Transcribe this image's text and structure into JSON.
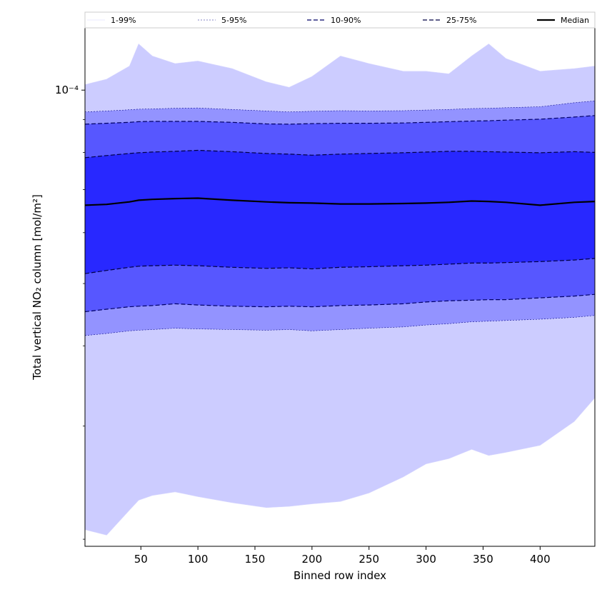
{
  "chart_data": {
    "type": "area",
    "xlabel": "Binned row index",
    "ylabel": "Total vertical NO₂ column [mol/m²]",
    "x_ticks": [
      50,
      100,
      150,
      200,
      250,
      300,
      350,
      400
    ],
    "y_scale": "log",
    "y_tick_label": "10⁻⁴",
    "xlim": [
      1,
      448
    ],
    "ylim": [
      1.95e-05,
      0.000125
    ],
    "grid": false,
    "legend_placement": "top",
    "x": [
      1,
      20,
      40,
      48,
      60,
      80,
      100,
      130,
      160,
      180,
      200,
      225,
      250,
      280,
      300,
      320,
      340,
      355,
      370,
      400,
      430,
      448
    ],
    "series": [
      {
        "name": "1-99%",
        "band_color": "#ccccff",
        "line_color": "#d6d6ff",
        "lower": [
          2.07e-05,
          2.03e-05,
          2.22e-05,
          2.3e-05,
          2.34e-05,
          2.37e-05,
          2.33e-05,
          2.28e-05,
          2.24e-05,
          2.25e-05,
          2.27e-05,
          2.29e-05,
          2.36e-05,
          2.5e-05,
          2.62e-05,
          2.67e-05,
          2.76e-05,
          2.7e-05,
          2.73e-05,
          2.8e-05,
          3.05e-05,
          3.32e-05
        ],
        "upper": [
          0.000102,
          0.000104,
          0.000109,
          0.000118,
          0.000113,
          0.00011,
          0.000111,
          0.000108,
          0.000103,
          0.000101,
          0.000105,
          0.000113,
          0.00011,
          0.000107,
          0.000107,
          0.000106,
          0.000113,
          0.000118,
          0.000112,
          0.000107,
          0.000108,
          0.000109
        ]
      },
      {
        "name": "5-95%",
        "band_color": "#9393ff",
        "line_color": "#0a0a8c",
        "lower": [
          4.15e-05,
          4.18e-05,
          4.22e-05,
          4.23e-05,
          4.24e-05,
          4.26e-05,
          4.25e-05,
          4.24e-05,
          4.23e-05,
          4.24e-05,
          4.22e-05,
          4.24e-05,
          4.26e-05,
          4.28e-05,
          4.31e-05,
          4.33e-05,
          4.36e-05,
          4.37e-05,
          4.38e-05,
          4.4e-05,
          4.43e-05,
          4.46e-05
        ],
        "upper": [
          9.25e-05,
          9.28e-05,
          9.32e-05,
          9.34e-05,
          9.35e-05,
          9.37e-05,
          9.38e-05,
          9.33e-05,
          9.28e-05,
          9.25e-05,
          9.27e-05,
          9.29e-05,
          9.28e-05,
          9.29e-05,
          9.31e-05,
          9.33e-05,
          9.36e-05,
          9.37e-05,
          9.39e-05,
          9.42e-05,
          9.56e-05,
          9.62e-05
        ]
      },
      {
        "name": "10-90%",
        "band_color": "#5757ff",
        "line_color": "#000066",
        "lower": [
          4.52e-05,
          4.56e-05,
          4.6e-05,
          4.61e-05,
          4.62e-05,
          4.65e-05,
          4.63e-05,
          4.61e-05,
          4.6e-05,
          4.61e-05,
          4.6e-05,
          4.62e-05,
          4.63e-05,
          4.65e-05,
          4.68e-05,
          4.7e-05,
          4.71e-05,
          4.72e-05,
          4.72e-05,
          4.75e-05,
          4.78e-05,
          4.81e-05
        ],
        "upper": [
          8.85e-05,
          8.88e-05,
          8.91e-05,
          8.93e-05,
          8.94e-05,
          8.94e-05,
          8.94e-05,
          8.91e-05,
          8.86e-05,
          8.85e-05,
          8.87e-05,
          8.88e-05,
          8.88e-05,
          8.89e-05,
          8.91e-05,
          8.93e-05,
          8.95e-05,
          8.96e-05,
          8.98e-05,
          9.01e-05,
          9.08e-05,
          9.13e-05
        ]
      },
      {
        "name": "25-75%",
        "band_color": "#2828ff",
        "line_color": "#000044",
        "lower": [
          5.18e-05,
          5.24e-05,
          5.3e-05,
          5.32e-05,
          5.33e-05,
          5.34e-05,
          5.33e-05,
          5.3e-05,
          5.28e-05,
          5.29e-05,
          5.27e-05,
          5.3e-05,
          5.31e-05,
          5.33e-05,
          5.34e-05,
          5.36e-05,
          5.38e-05,
          5.38e-05,
          5.39e-05,
          5.41e-05,
          5.44e-05,
          5.47e-05
        ],
        "upper": [
          7.85e-05,
          7.91e-05,
          7.97e-05,
          7.99e-05,
          8.01e-05,
          8.03e-05,
          8.06e-05,
          8.02e-05,
          7.97e-05,
          7.95e-05,
          7.92e-05,
          7.95e-05,
          7.97e-05,
          7.99e-05,
          8.01e-05,
          8.03e-05,
          8.03e-05,
          8.02e-05,
          8.01e-05,
          7.99e-05,
          8.02e-05,
          8e-05
        ]
      },
      {
        "name": "Median",
        "line_color": "#000000",
        "values": [
          6.62e-05,
          6.64e-05,
          6.7e-05,
          6.74e-05,
          6.76e-05,
          6.78e-05,
          6.79e-05,
          6.74e-05,
          6.7e-05,
          6.68e-05,
          6.67e-05,
          6.65e-05,
          6.65e-05,
          6.66e-05,
          6.67e-05,
          6.69e-05,
          6.72e-05,
          6.71e-05,
          6.69e-05,
          6.62e-05,
          6.69e-05,
          6.71e-05
        ]
      }
    ]
  }
}
